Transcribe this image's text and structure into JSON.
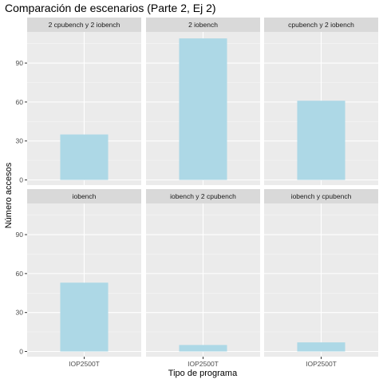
{
  "chart_data": {
    "type": "bar",
    "title": "Comparación de escenarios (Parte 2, Ej 2)",
    "xlabel": "Tipo de programa",
    "ylabel": "Número accesos",
    "categories": [
      "IOP2500T"
    ],
    "ylim": [
      -4,
      114
    ],
    "yticks": [
      0,
      30,
      60,
      90
    ],
    "bar_color": "#add8e6",
    "panel_background": "#ebebeb",
    "strip_background": "#d9d9d9",
    "grid": true,
    "legend": "none",
    "facets": [
      {
        "label": "2 cpubench y 2 iobench",
        "value": 35
      },
      {
        "label": "2 iobench",
        "value": 109
      },
      {
        "label": "cpubench y 2 iobench",
        "value": 61
      },
      {
        "label": "iobench",
        "value": 53
      },
      {
        "label": "iobench y 2 cpubench",
        "value": 5
      },
      {
        "label": "iobench y cpubench",
        "value": 7
      }
    ]
  }
}
